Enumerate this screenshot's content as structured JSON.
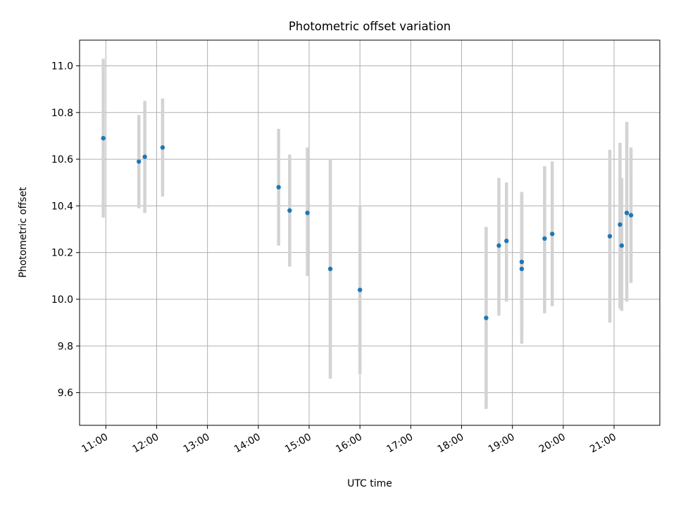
{
  "chart_data": {
    "type": "scatter",
    "title": "Photometric offset variation",
    "xlabel": "UTC time",
    "ylabel": "Photometric offset",
    "x_ticks": [
      "11:00",
      "12:00",
      "13:00",
      "14:00",
      "15:00",
      "16:00",
      "17:00",
      "18:00",
      "19:00",
      "20:00",
      "21:00"
    ],
    "y_ticks": [
      "9.6",
      "9.8",
      "10.0",
      "10.2",
      "10.4",
      "10.6",
      "10.8",
      "11.0"
    ],
    "xlim": [
      "10:29",
      "21:54"
    ],
    "ylim": [
      9.46,
      11.11
    ],
    "grid": true,
    "point_color": "#1f77b4",
    "errorbar_color": "#d3d3d3",
    "points": [
      {
        "time": "10:57",
        "y": 10.69,
        "err_low": 10.35,
        "err_high": 11.03
      },
      {
        "time": "11:39",
        "y": 10.59,
        "err_low": 10.39,
        "err_high": 10.79
      },
      {
        "time": "11:46",
        "y": 10.61,
        "err_low": 10.37,
        "err_high": 10.85
      },
      {
        "time": "12:07",
        "y": 10.65,
        "err_low": 10.44,
        "err_high": 10.86
      },
      {
        "time": "14:24",
        "y": 10.48,
        "err_low": 10.23,
        "err_high": 10.73
      },
      {
        "time": "14:37",
        "y": 10.38,
        "err_low": 10.14,
        "err_high": 10.62
      },
      {
        "time": "14:58",
        "y": 10.37,
        "err_low": 10.1,
        "err_high": 10.65
      },
      {
        "time": "15:25",
        "y": 10.13,
        "err_low": 9.66,
        "err_high": 10.6
      },
      {
        "time": "16:00",
        "y": 10.04,
        "err_low": 9.68,
        "err_high": 10.4
      },
      {
        "time": "18:29",
        "y": 9.92,
        "err_low": 9.53,
        "err_high": 10.31
      },
      {
        "time": "18:44",
        "y": 10.23,
        "err_low": 9.93,
        "err_high": 10.52
      },
      {
        "time": "18:53",
        "y": 10.25,
        "err_low": 9.99,
        "err_high": 10.5
      },
      {
        "time": "19:11",
        "y": 10.16,
        "err_low": 9.86,
        "err_high": 10.46
      },
      {
        "time": "19:11",
        "y": 10.13,
        "err_low": 9.81,
        "err_high": 10.45
      },
      {
        "time": "19:38",
        "y": 10.26,
        "err_low": 9.94,
        "err_high": 10.57
      },
      {
        "time": "19:47",
        "y": 10.28,
        "err_low": 9.97,
        "err_high": 10.59
      },
      {
        "time": "20:55",
        "y": 10.27,
        "err_low": 9.9,
        "err_high": 10.64
      },
      {
        "time": "21:07",
        "y": 10.32,
        "err_low": 9.96,
        "err_high": 10.67
      },
      {
        "time": "21:09",
        "y": 10.23,
        "err_low": 9.95,
        "err_high": 10.52
      },
      {
        "time": "21:15",
        "y": 10.37,
        "err_low": 9.99,
        "err_high": 10.76
      },
      {
        "time": "21:20",
        "y": 10.36,
        "err_low": 10.07,
        "err_high": 10.65
      }
    ]
  }
}
